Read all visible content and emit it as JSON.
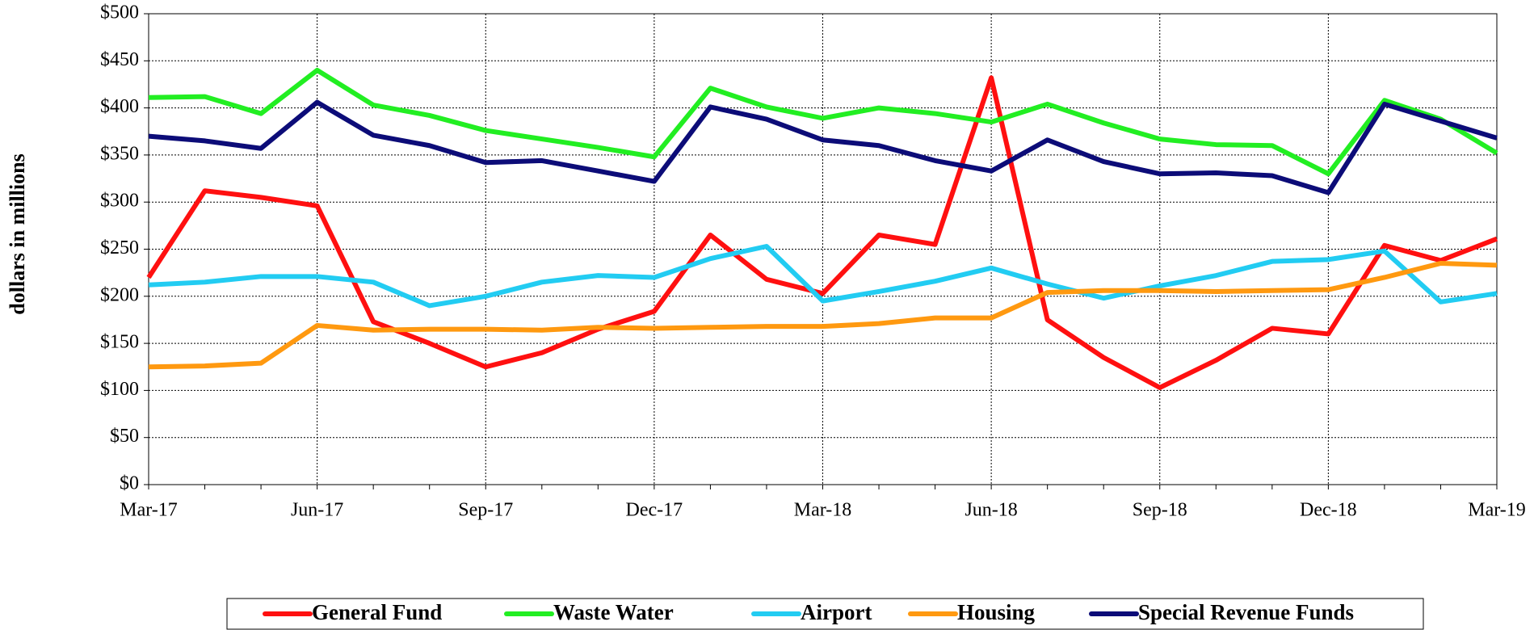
{
  "chart_data": {
    "type": "line",
    "y_label": "dollars in millions",
    "categories": [
      "Mar-17",
      null,
      null,
      "Jun-17",
      null,
      null,
      "Sep-17",
      null,
      null,
      "Dec-17",
      null,
      null,
      "Mar-18",
      null,
      null,
      "Jun-18",
      null,
      null,
      "Sep-18",
      null,
      null,
      "Dec-18",
      null,
      null,
      "Mar-19"
    ],
    "series": [
      {
        "name": "General Fund",
        "color": "#ff1010",
        "values": [
          220,
          312,
          305,
          296,
          173,
          150,
          125,
          140,
          165,
          184,
          265,
          218,
          203,
          265,
          255,
          432,
          175,
          135,
          103,
          132,
          166,
          160,
          254,
          238,
          261
        ]
      },
      {
        "name": "Waste Water",
        "color": "#22ee22",
        "values": [
          411,
          412,
          394,
          440,
          403,
          392,
          376,
          367,
          358,
          348,
          421,
          401,
          389,
          400,
          394,
          385,
          404,
          384,
          367,
          361,
          360,
          330,
          408,
          388,
          352
        ]
      },
      {
        "name": "Airport",
        "color": "#22ccf2",
        "values": [
          212,
          215,
          221,
          221,
          215,
          190,
          200,
          215,
          222,
          220,
          240,
          253,
          195,
          205,
          216,
          230,
          213,
          198,
          211,
          222,
          237,
          239,
          248,
          194,
          203
        ]
      },
      {
        "name": "Housing",
        "color": "#ff9910",
        "values": [
          125,
          126,
          129,
          169,
          164,
          165,
          165,
          164,
          167,
          166,
          167,
          168,
          168,
          171,
          177,
          177,
          204,
          206,
          206,
          205,
          206,
          207,
          220,
          235,
          233
        ]
      },
      {
        "name": "Special Revenue Funds",
        "color": "#0c0c78",
        "values": [
          370,
          365,
          357,
          406,
          371,
          360,
          342,
          344,
          333,
          322,
          401,
          388,
          366,
          360,
          344,
          333,
          366,
          343,
          330,
          331,
          328,
          310,
          404,
          386,
          368
        ]
      }
    ],
    "ylim": [
      0,
      500
    ],
    "yticks": [
      {
        "value": 0,
        "label": "$0"
      },
      {
        "value": 50,
        "label": "$50"
      },
      {
        "value": 100,
        "label": "$100"
      },
      {
        "value": 150,
        "label": "$150"
      },
      {
        "value": 200,
        "label": "$200"
      },
      {
        "value": 250,
        "label": "$250"
      },
      {
        "value": 300,
        "label": "$300"
      },
      {
        "value": 350,
        "label": "$350"
      },
      {
        "value": 400,
        "label": "$400"
      },
      {
        "value": 450,
        "label": "$450"
      },
      {
        "value": 500,
        "label": "$500"
      }
    ],
    "grid": true,
    "legend": "bottom"
  }
}
